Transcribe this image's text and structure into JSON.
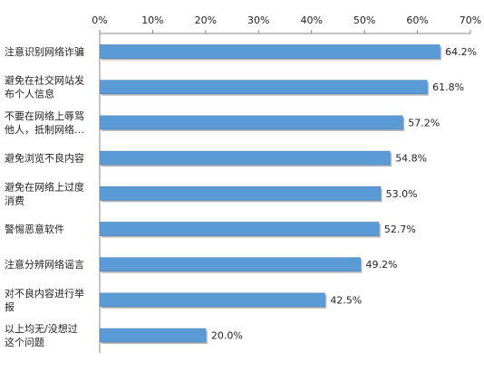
{
  "chart_data": {
    "type": "bar",
    "orientation": "horizontal",
    "title": "",
    "xlabel": "",
    "ylabel": "",
    "xlim": [
      0,
      70
    ],
    "x_ticks": [
      0,
      10,
      20,
      30,
      40,
      50,
      60,
      70
    ],
    "x_tick_labels": [
      "0%",
      "10%",
      "20%",
      "30%",
      "40%",
      "50%",
      "60%",
      "70%"
    ],
    "x_axis_position": "top",
    "grid": false,
    "legend": "none",
    "categories": [
      [
        "注意识别网络诈骗"
      ],
      [
        "避免在社交网站发",
        "布个人信息"
      ],
      [
        "不要在网络上辱骂",
        "他人，抵制网络…"
      ],
      [
        "避免浏览不良内容"
      ],
      [
        "避免在网络上过度",
        "消费"
      ],
      [
        "警惕恶意软件"
      ],
      [
        "注意分辨网络谣言"
      ],
      [
        "对不良内容进行举",
        "报"
      ],
      [
        "以上均无/没想过",
        "这个问题"
      ]
    ],
    "values": [
      64.2,
      61.8,
      57.2,
      54.8,
      53.0,
      52.7,
      49.2,
      42.5,
      20.0
    ],
    "value_labels": [
      "64.2%",
      "61.8%",
      "57.2%",
      "54.8%",
      "53.0%",
      "52.7%",
      "49.2%",
      "42.5%",
      "20.0%"
    ],
    "colors": {
      "bar_fill": "#5b9bd5",
      "bar_stroke": "#4a7fb5",
      "bar_shadow": "#b8b8b8",
      "axis": "#888888",
      "text": "#222222"
    }
  }
}
